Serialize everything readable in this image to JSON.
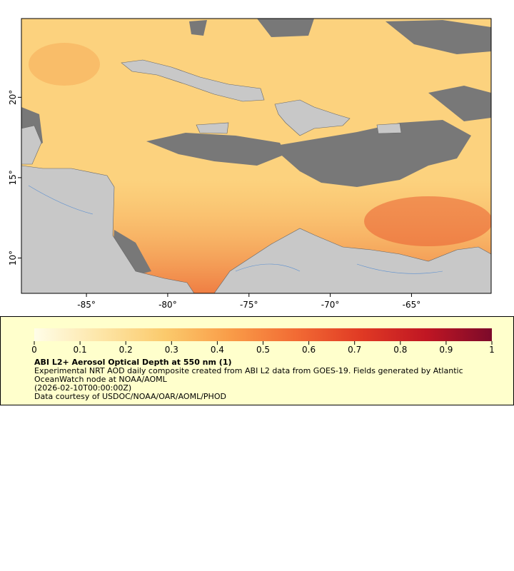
{
  "map": {
    "xlim": [
      -89,
      -60.1
    ],
    "ylim": [
      7.8,
      24.9
    ],
    "xticks": [
      {
        "value": -85,
        "label": "-85°"
      },
      {
        "value": -80,
        "label": "-80°"
      },
      {
        "value": -75,
        "label": "-75°"
      },
      {
        "value": -70,
        "label": "-70°"
      },
      {
        "value": -65,
        "label": "-65°"
      }
    ],
    "yticks": [
      {
        "value": 10,
        "label": "10°"
      },
      {
        "value": 15,
        "label": "15°"
      },
      {
        "value": 20,
        "label": "20°"
      }
    ]
  },
  "legend": {
    "colorbar": {
      "lim": [
        0,
        1
      ],
      "ticks": [
        0,
        0.1,
        0.2,
        0.3,
        0.4,
        0.5,
        0.6,
        0.7,
        0.8,
        0.9,
        1
      ],
      "colors": [
        "#fffde8",
        "#fde6a8",
        "#fbca6c",
        "#f99c48",
        "#f26b34",
        "#e03a24",
        "#c01623",
        "#7c0a2a"
      ]
    },
    "title": "ABI L2+ Aerosol Optical Depth at 550 nm (1)",
    "description": "Experimental NRT AOD daily composite created from ABI L2 data from GOES-19. Fields generated by Atlantic OceanWatch node at NOAA/AOML",
    "time": "(2026-02-10T00:00:00Z)",
    "credit": "Data courtesy of USDOC/NOAA/OAR/AOML/PHOD"
  }
}
